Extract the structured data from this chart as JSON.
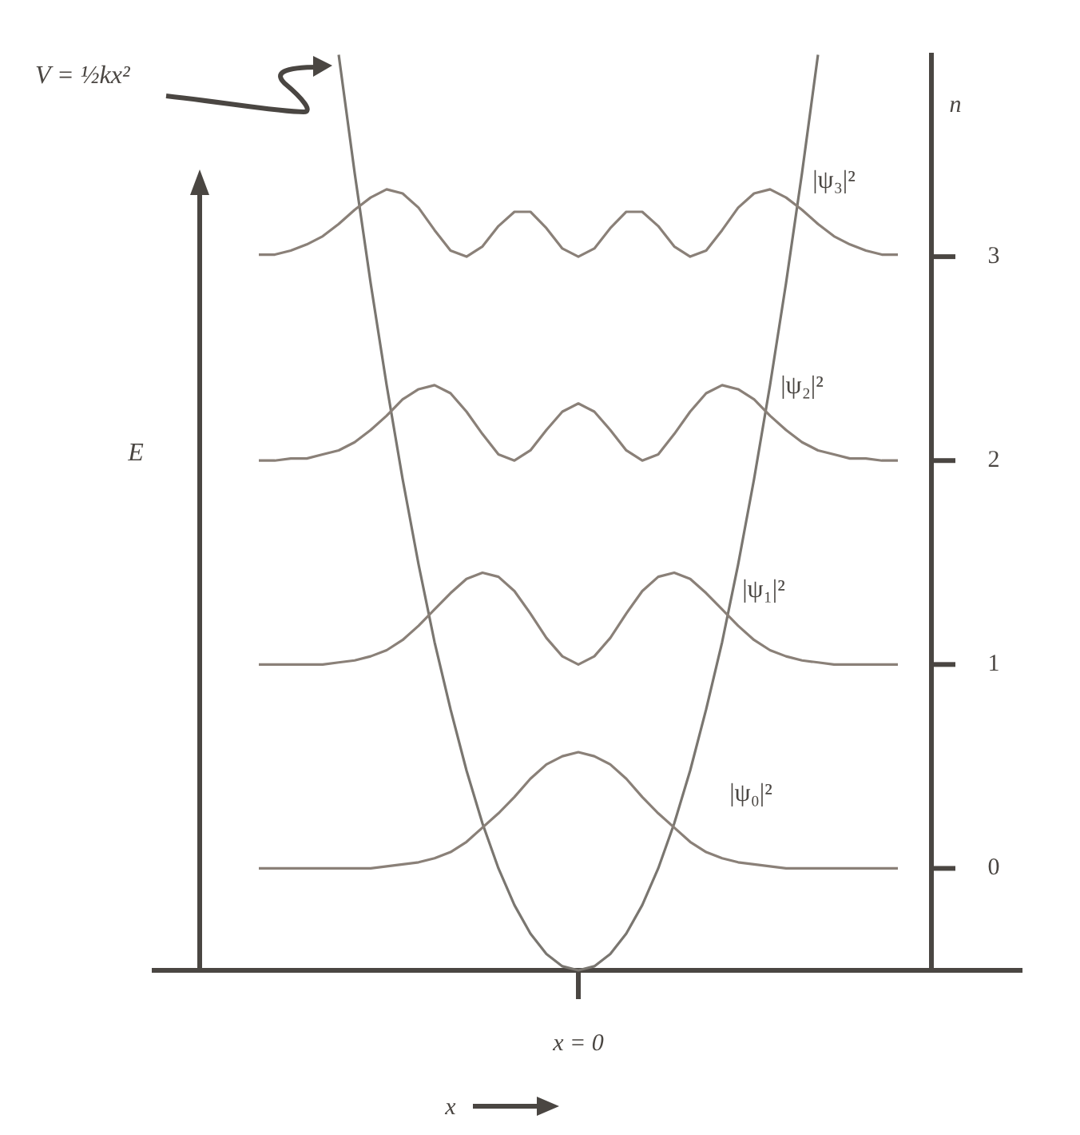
{
  "chart_data": {
    "type": "line",
    "ylabel": "n",
    "annotations": [
      "V = ½kx²",
      "x = 0",
      "E",
      "x"
    ],
    "categories": [
      null,
      null,
      null,
      null,
      null,
      null,
      null,
      null,
      null,
      null,
      null,
      null,
      null,
      null,
      null,
      null,
      null,
      null,
      null,
      null,
      null,
      null,
      null,
      null,
      null,
      null,
      null,
      null,
      null,
      null,
      null,
      null,
      null,
      null,
      null,
      null,
      null,
      null,
      null,
      null,
      null
    ],
    "ylim": [
      -0.5,
      4.0
    ],
    "yticks": [
      0,
      1,
      2,
      3
    ],
    "marker": "none",
    "series": [
      {
        "color": "#7a7670",
        "values": [
          null,
          null,
          null,
          null,
          null,
          3.99,
          3.41,
          2.87,
          2.37,
          1.91,
          1.49,
          1.11,
          0.78,
          0.48,
          0.22,
          0,
          -0.18,
          -0.32,
          -0.42,
          -0.48,
          -0.5,
          -0.48,
          -0.42,
          -0.32,
          -0.18,
          0,
          0.22,
          0.48,
          0.78,
          1.11,
          1.49,
          1.91,
          2.37,
          2.87,
          3.41,
          3.99,
          null,
          null,
          null,
          null,
          null
        ]
      },
      {
        "name": "|ψ₀|²",
        "color": "#8a8078",
        "values": [
          0,
          0,
          0,
          0,
          0,
          0,
          0,
          0,
          0.01,
          0.02,
          0.03,
          0.05,
          0.08,
          0.13,
          0.2,
          0.27,
          0.35,
          0.44,
          0.51,
          0.55,
          0.57,
          0.55,
          0.51,
          0.44,
          0.35,
          0.27,
          0.2,
          0.13,
          0.08,
          0.05,
          0.03,
          0.02,
          0.01,
          0,
          0,
          0,
          0,
          0,
          0,
          0,
          0
        ]
      },
      {
        "name": "|ψ₁|²",
        "color": "#8a8078",
        "values": [
          1,
          1,
          1,
          1,
          1,
          1.01,
          1.02,
          1.04,
          1.07,
          1.12,
          1.19,
          1.27,
          1.35,
          1.42,
          1.45,
          1.43,
          1.36,
          1.25,
          1.13,
          1.04,
          1,
          1.04,
          1.13,
          1.25,
          1.36,
          1.43,
          1.45,
          1.42,
          1.35,
          1.27,
          1.19,
          1.12,
          1.07,
          1.04,
          1.02,
          1.01,
          1,
          1,
          1,
          1,
          1
        ]
      },
      {
        "name": "|ψ₂|²",
        "color": "#8a8078",
        "values": [
          2,
          2,
          2.01,
          2.01,
          2.03,
          2.05,
          2.09,
          2.15,
          2.22,
          2.3,
          2.35,
          2.37,
          2.33,
          2.24,
          2.13,
          2.03,
          2,
          2.05,
          2.15,
          2.24,
          2.28,
          2.24,
          2.15,
          2.05,
          2,
          2.03,
          2.13,
          2.24,
          2.33,
          2.37,
          2.35,
          2.3,
          2.22,
          2.15,
          2.09,
          2.05,
          2.03,
          2.01,
          2.01,
          2,
          2
        ]
      },
      {
        "name": "|ψ₃|²",
        "color": "#8a8078",
        "values": [
          3.01,
          3.01,
          3.03,
          3.06,
          3.1,
          3.16,
          3.23,
          3.29,
          3.33,
          3.31,
          3.24,
          3.13,
          3.03,
          3,
          3.05,
          3.15,
          3.22,
          3.22,
          3.14,
          3.04,
          3,
          3.04,
          3.14,
          3.22,
          3.22,
          3.15,
          3.05,
          3,
          3.03,
          3.13,
          3.24,
          3.31,
          3.33,
          3.29,
          3.23,
          3.16,
          3.1,
          3.06,
          3.03,
          3.01,
          3.01
        ]
      }
    ]
  }
}
